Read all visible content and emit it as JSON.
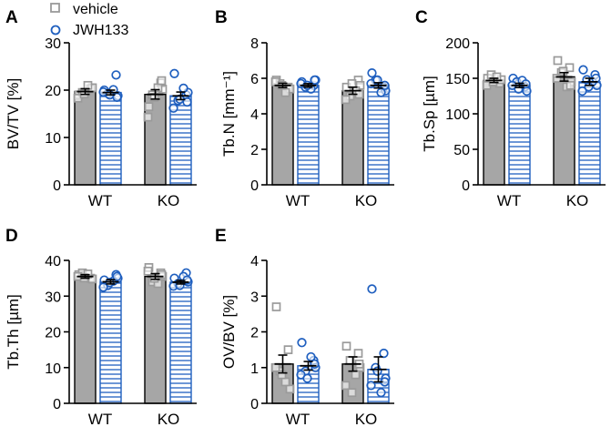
{
  "legend": [
    {
      "name": "vehicle",
      "marker": "square",
      "color": "#9a9a9a"
    },
    {
      "name": "JWH133",
      "marker": "circle",
      "color": "#1f5fbf"
    }
  ],
  "colors": {
    "vehicle_bar": "#a6a6a6",
    "jwh_stripe": "#1f5fbf",
    "vehicle_point": "#9a9a9a",
    "jwh_point": "#1f5fbf"
  },
  "chart_data": [
    {
      "panel": "A",
      "type": "bar",
      "ylabel": "BV/TV [%]",
      "categories": [
        "WT",
        "KO"
      ],
      "ylim": [
        0,
        30
      ],
      "yticks": [
        0,
        10,
        20,
        30
      ],
      "series": [
        {
          "name": "vehicle",
          "values": [
            19.7,
            19.1
          ],
          "sem": [
            0.6,
            1.0
          ],
          "points": [
            [
              19.0,
              20.3,
              19.5,
              20.5,
              18.3,
              21.0,
              19.2
            ],
            [
              16.5,
              21.5,
              19.0,
              20.2,
              14.3,
              20.5,
              18.5,
              22.0
            ]
          ]
        },
        {
          "name": "JWH133",
          "values": [
            19.5,
            18.8
          ],
          "sem": [
            0.5,
            0.8
          ],
          "points": [
            [
              20.0,
              23.2,
              19.3,
              18.8,
              19.6,
              20.1,
              19.0,
              18.5
            ],
            [
              23.5,
              19.0,
              17.8,
              19.5,
              16.2,
              20.4,
              18.1,
              17.5
            ]
          ]
        }
      ]
    },
    {
      "panel": "B",
      "type": "bar",
      "ylabel": "Tb.N [mm⁻¹]",
      "categories": [
        "WT",
        "KO"
      ],
      "ylim": [
        0,
        8
      ],
      "yticks": [
        0,
        2,
        4,
        6,
        8
      ],
      "series": [
        {
          "name": "vehicle",
          "values": [
            5.6,
            5.3
          ],
          "sem": [
            0.12,
            0.2
          ],
          "points": [
            [
              5.9,
              5.5,
              5.7,
              5.4,
              5.8,
              5.2,
              5.6
            ],
            [
              5.5,
              5.9,
              5.0,
              5.6,
              4.8,
              5.3,
              5.7,
              5.1
            ]
          ]
        },
        {
          "name": "JWH133",
          "values": [
            5.6,
            5.6
          ],
          "sem": [
            0.1,
            0.15
          ],
          "points": [
            [
              5.8,
              5.6,
              5.5,
              5.9,
              5.7,
              5.4,
              5.6,
              5.9
            ],
            [
              6.3,
              5.5,
              5.9,
              5.3,
              5.7,
              5.2,
              5.9,
              5.6
            ]
          ]
        }
      ]
    },
    {
      "panel": "C",
      "type": "bar",
      "ylabel": "Tb.Sp [µm]",
      "categories": [
        "WT",
        "KO"
      ],
      "ylim": [
        0,
        200
      ],
      "yticks": [
        0,
        50,
        100,
        150,
        200
      ],
      "series": [
        {
          "name": "vehicle",
          "values": [
            147,
            152
          ],
          "sem": [
            3,
            6
          ],
          "points": [
            [
              150,
              143,
              155,
              148,
              140,
              152,
              145
            ],
            [
              175,
              165,
              158,
              145,
              150,
              138,
              160,
              140
            ]
          ]
        },
        {
          "name": "JWH133",
          "values": [
            140,
            145
          ],
          "sem": [
            3,
            5
          ],
          "points": [
            [
              150,
              138,
              145,
              132,
              140,
              147,
              135,
              142
            ],
            [
              162,
              155,
              148,
              140,
              132,
              145,
              138,
              150
            ]
          ]
        }
      ]
    },
    {
      "panel": "D",
      "type": "bar",
      "ylabel": "Tb.Th [µm]",
      "categories": [
        "WT",
        "KO"
      ],
      "ylim": [
        0,
        40
      ],
      "yticks": [
        0,
        10,
        20,
        30,
        40
      ],
      "series": [
        {
          "name": "vehicle",
          "values": [
            35.5,
            35.5
          ],
          "sem": [
            0.5,
            0.8
          ],
          "points": [
            [
              36.0,
              35.0,
              36.5,
              34.8,
              35.5,
              36.2,
              35.1
            ],
            [
              38.0,
              36.5,
              34.0,
              35.5,
              37.0,
              33.5,
              35.0,
              36.0
            ]
          ]
        },
        {
          "name": "JWH133",
          "values": [
            34.0,
            33.9
          ],
          "sem": [
            0.6,
            0.5
          ],
          "points": [
            [
              34.5,
              36.0,
              33.0,
              35.0,
              32.5,
              34.2,
              33.8,
              35.5
            ],
            [
              35.0,
              36.5,
              33.5,
              34.0,
              32.8,
              35.5,
              33.0,
              34.5
            ]
          ]
        }
      ]
    },
    {
      "panel": "E",
      "type": "bar",
      "ylabel": "OV/BV [%]",
      "categories": [
        "WT",
        "KO"
      ],
      "ylim": [
        0,
        4
      ],
      "yticks": [
        0,
        1,
        2,
        3,
        4
      ],
      "series": [
        {
          "name": "vehicle",
          "values": [
            1.1,
            1.1
          ],
          "sem": [
            0.25,
            0.2
          ],
          "points": [
            [
              2.7,
              1.5,
              0.9,
              0.4,
              1.0,
              0.6,
              0.8
            ],
            [
              1.6,
              1.4,
              1.2,
              1.0,
              0.5,
              0.8,
              0.3,
              1.1
            ]
          ]
        },
        {
          "name": "JWH133",
          "values": [
            1.05,
            0.95
          ],
          "sem": [
            0.12,
            0.35
          ],
          "points": [
            [
              1.7,
              1.2,
              0.9,
              1.0,
              0.8,
              1.3,
              0.7,
              1.1
            ],
            [
              3.2,
              1.4,
              1.0,
              0.7,
              0.5,
              0.3,
              0.9,
              0.6
            ]
          ]
        }
      ]
    }
  ]
}
